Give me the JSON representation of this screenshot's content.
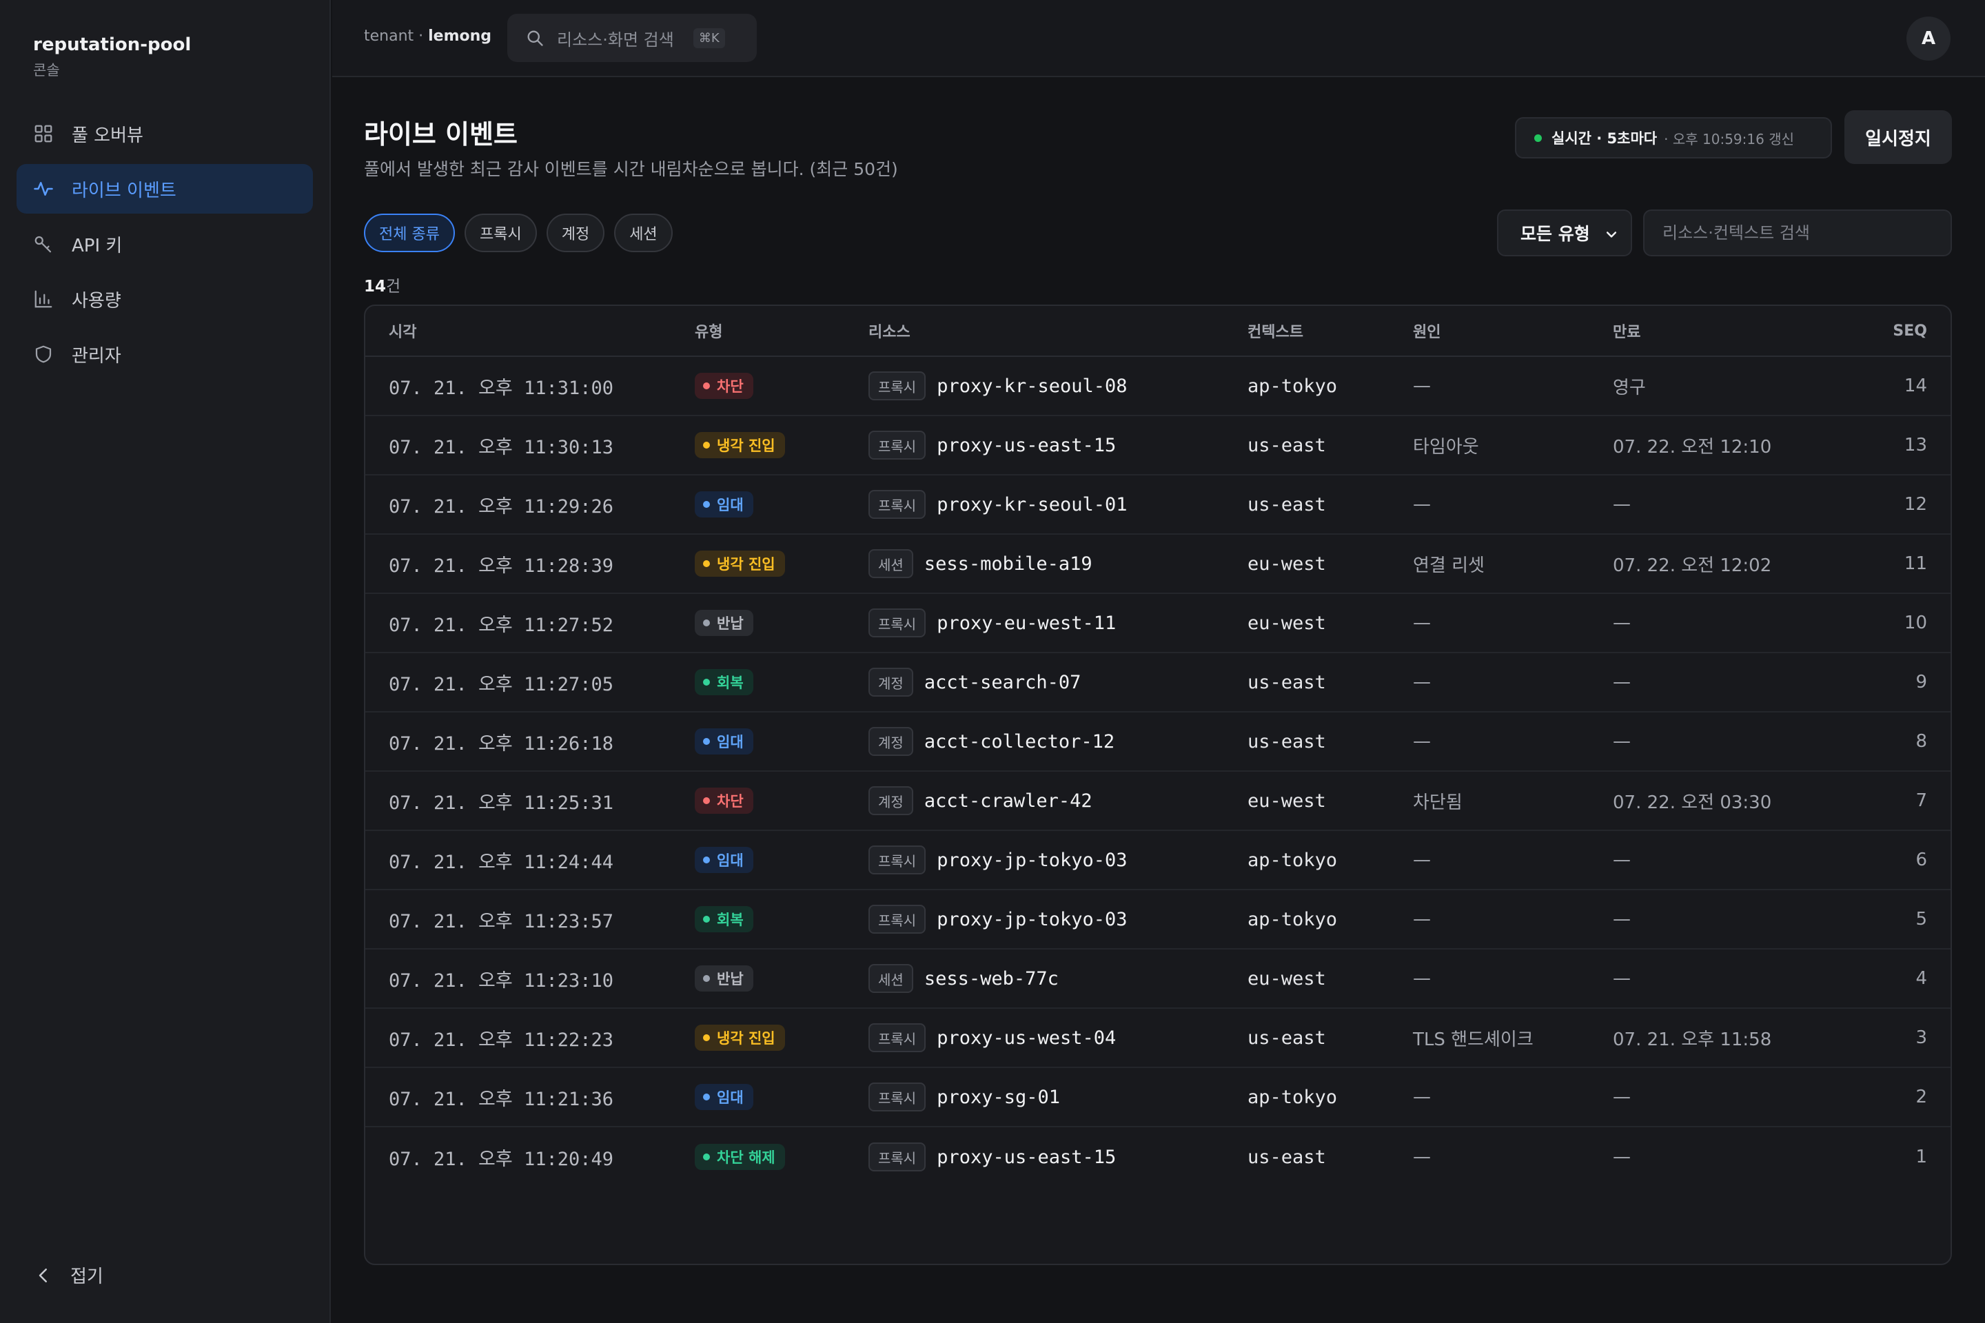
{
  "brand": {
    "name": "reputation-pool",
    "sub": "콘솔"
  },
  "nav": {
    "items": [
      {
        "label": "풀 오버뷰",
        "icon": "grid-icon"
      },
      {
        "label": "라이브 이벤트",
        "icon": "activity-icon"
      },
      {
        "label": "API 키",
        "icon": "key-icon"
      },
      {
        "label": "사용량",
        "icon": "bar-chart-icon"
      },
      {
        "label": "관리자",
        "icon": "shield-icon"
      }
    ],
    "active_index": 1,
    "collapse_label": "접기"
  },
  "topbar": {
    "tenant_prefix": "tenant · ",
    "tenant_name": "lemong",
    "search_placeholder": "리소스·화면 검색",
    "search_shortcut": "⌘K",
    "avatar_initial": "A"
  },
  "page": {
    "title": "라이브 이벤트",
    "description": "풀에서 발생한 최근 감사 이벤트를 시간 내림차순으로 봅니다. (최근 50건)",
    "live_label": "실시간 · 5초마다",
    "live_updated": "· 오후 10:59:16 갱신",
    "pause_label": "일시정지"
  },
  "filters": {
    "chips": [
      "전체 종류",
      "프록시",
      "계정",
      "세션"
    ],
    "active_chip": 0,
    "type_select": "모든 유형",
    "search_placeholder": "리소스·컨텍스트 검색"
  },
  "count": {
    "number": "14",
    "unit": "건"
  },
  "table": {
    "columns": {
      "time": "시각",
      "type": "유형",
      "resource": "리소스",
      "context": "컨텍스트",
      "cause": "원인",
      "expiry": "만료",
      "seq": "SEQ"
    },
    "rows": [
      {
        "time": "07. 21. 오후 11:31:00",
        "type": "차단",
        "kind": "block",
        "res_tag": "프록시",
        "resource": "proxy-kr-seoul-08",
        "context": "ap-tokyo",
        "cause": "—",
        "expiry": "영구",
        "seq": "14"
      },
      {
        "time": "07. 21. 오후 11:30:13",
        "type": "냉각 진입",
        "kind": "cool",
        "res_tag": "프록시",
        "resource": "proxy-us-east-15",
        "context": "us-east",
        "cause": "타임아웃",
        "expiry": "07. 22. 오전 12:10",
        "seq": "13"
      },
      {
        "time": "07. 21. 오후 11:29:26",
        "type": "임대",
        "kind": "lease",
        "res_tag": "프록시",
        "resource": "proxy-kr-seoul-01",
        "context": "us-east",
        "cause": "—",
        "expiry": "—",
        "seq": "12"
      },
      {
        "time": "07. 21. 오후 11:28:39",
        "type": "냉각 진입",
        "kind": "cool",
        "res_tag": "세션",
        "resource": "sess-mobile-a19",
        "context": "eu-west",
        "cause": "연결 리셋",
        "expiry": "07. 22. 오전 12:02",
        "seq": "11"
      },
      {
        "time": "07. 21. 오후 11:27:52",
        "type": "반납",
        "kind": "return",
        "res_tag": "프록시",
        "resource": "proxy-eu-west-11",
        "context": "eu-west",
        "cause": "—",
        "expiry": "—",
        "seq": "10"
      },
      {
        "time": "07. 21. 오후 11:27:05",
        "type": "회복",
        "kind": "recover",
        "res_tag": "계정",
        "resource": "acct-search-07",
        "context": "us-east",
        "cause": "—",
        "expiry": "—",
        "seq": "9"
      },
      {
        "time": "07. 21. 오후 11:26:18",
        "type": "임대",
        "kind": "lease",
        "res_tag": "계정",
        "resource": "acct-collector-12",
        "context": "us-east",
        "cause": "—",
        "expiry": "—",
        "seq": "8"
      },
      {
        "time": "07. 21. 오후 11:25:31",
        "type": "차단",
        "kind": "block",
        "res_tag": "계정",
        "resource": "acct-crawler-42",
        "context": "eu-west",
        "cause": "차단됨",
        "expiry": "07. 22. 오전 03:30",
        "seq": "7"
      },
      {
        "time": "07. 21. 오후 11:24:44",
        "type": "임대",
        "kind": "lease",
        "res_tag": "프록시",
        "resource": "proxy-jp-tokyo-03",
        "context": "ap-tokyo",
        "cause": "—",
        "expiry": "—",
        "seq": "6"
      },
      {
        "time": "07. 21. 오후 11:23:57",
        "type": "회복",
        "kind": "recover",
        "res_tag": "프록시",
        "resource": "proxy-jp-tokyo-03",
        "context": "ap-tokyo",
        "cause": "—",
        "expiry": "—",
        "seq": "5"
      },
      {
        "time": "07. 21. 오후 11:23:10",
        "type": "반납",
        "kind": "return",
        "res_tag": "세션",
        "resource": "sess-web-77c",
        "context": "eu-west",
        "cause": "—",
        "expiry": "—",
        "seq": "4"
      },
      {
        "time": "07. 21. 오후 11:22:23",
        "type": "냉각 진입",
        "kind": "cool",
        "res_tag": "프록시",
        "resource": "proxy-us-west-04",
        "context": "us-east",
        "cause": "TLS 핸드셰이크",
        "expiry": "07. 21. 오후 11:58",
        "seq": "3"
      },
      {
        "time": "07. 21. 오후 11:21:36",
        "type": "임대",
        "kind": "lease",
        "res_tag": "프록시",
        "resource": "proxy-sg-01",
        "context": "ap-tokyo",
        "cause": "—",
        "expiry": "—",
        "seq": "2"
      },
      {
        "time": "07. 21. 오후 11:20:49",
        "type": "차단 해제",
        "kind": "unblock",
        "res_tag": "프록시",
        "resource": "proxy-us-east-15",
        "context": "us-east",
        "cause": "—",
        "expiry": "—",
        "seq": "1"
      }
    ]
  },
  "colors": {
    "accent": "#3b82f6",
    "block": "#f87171",
    "cooldown": "#fbbf24",
    "lease": "#60a5fa",
    "recover": "#34d399",
    "live": "#22c55e"
  }
}
